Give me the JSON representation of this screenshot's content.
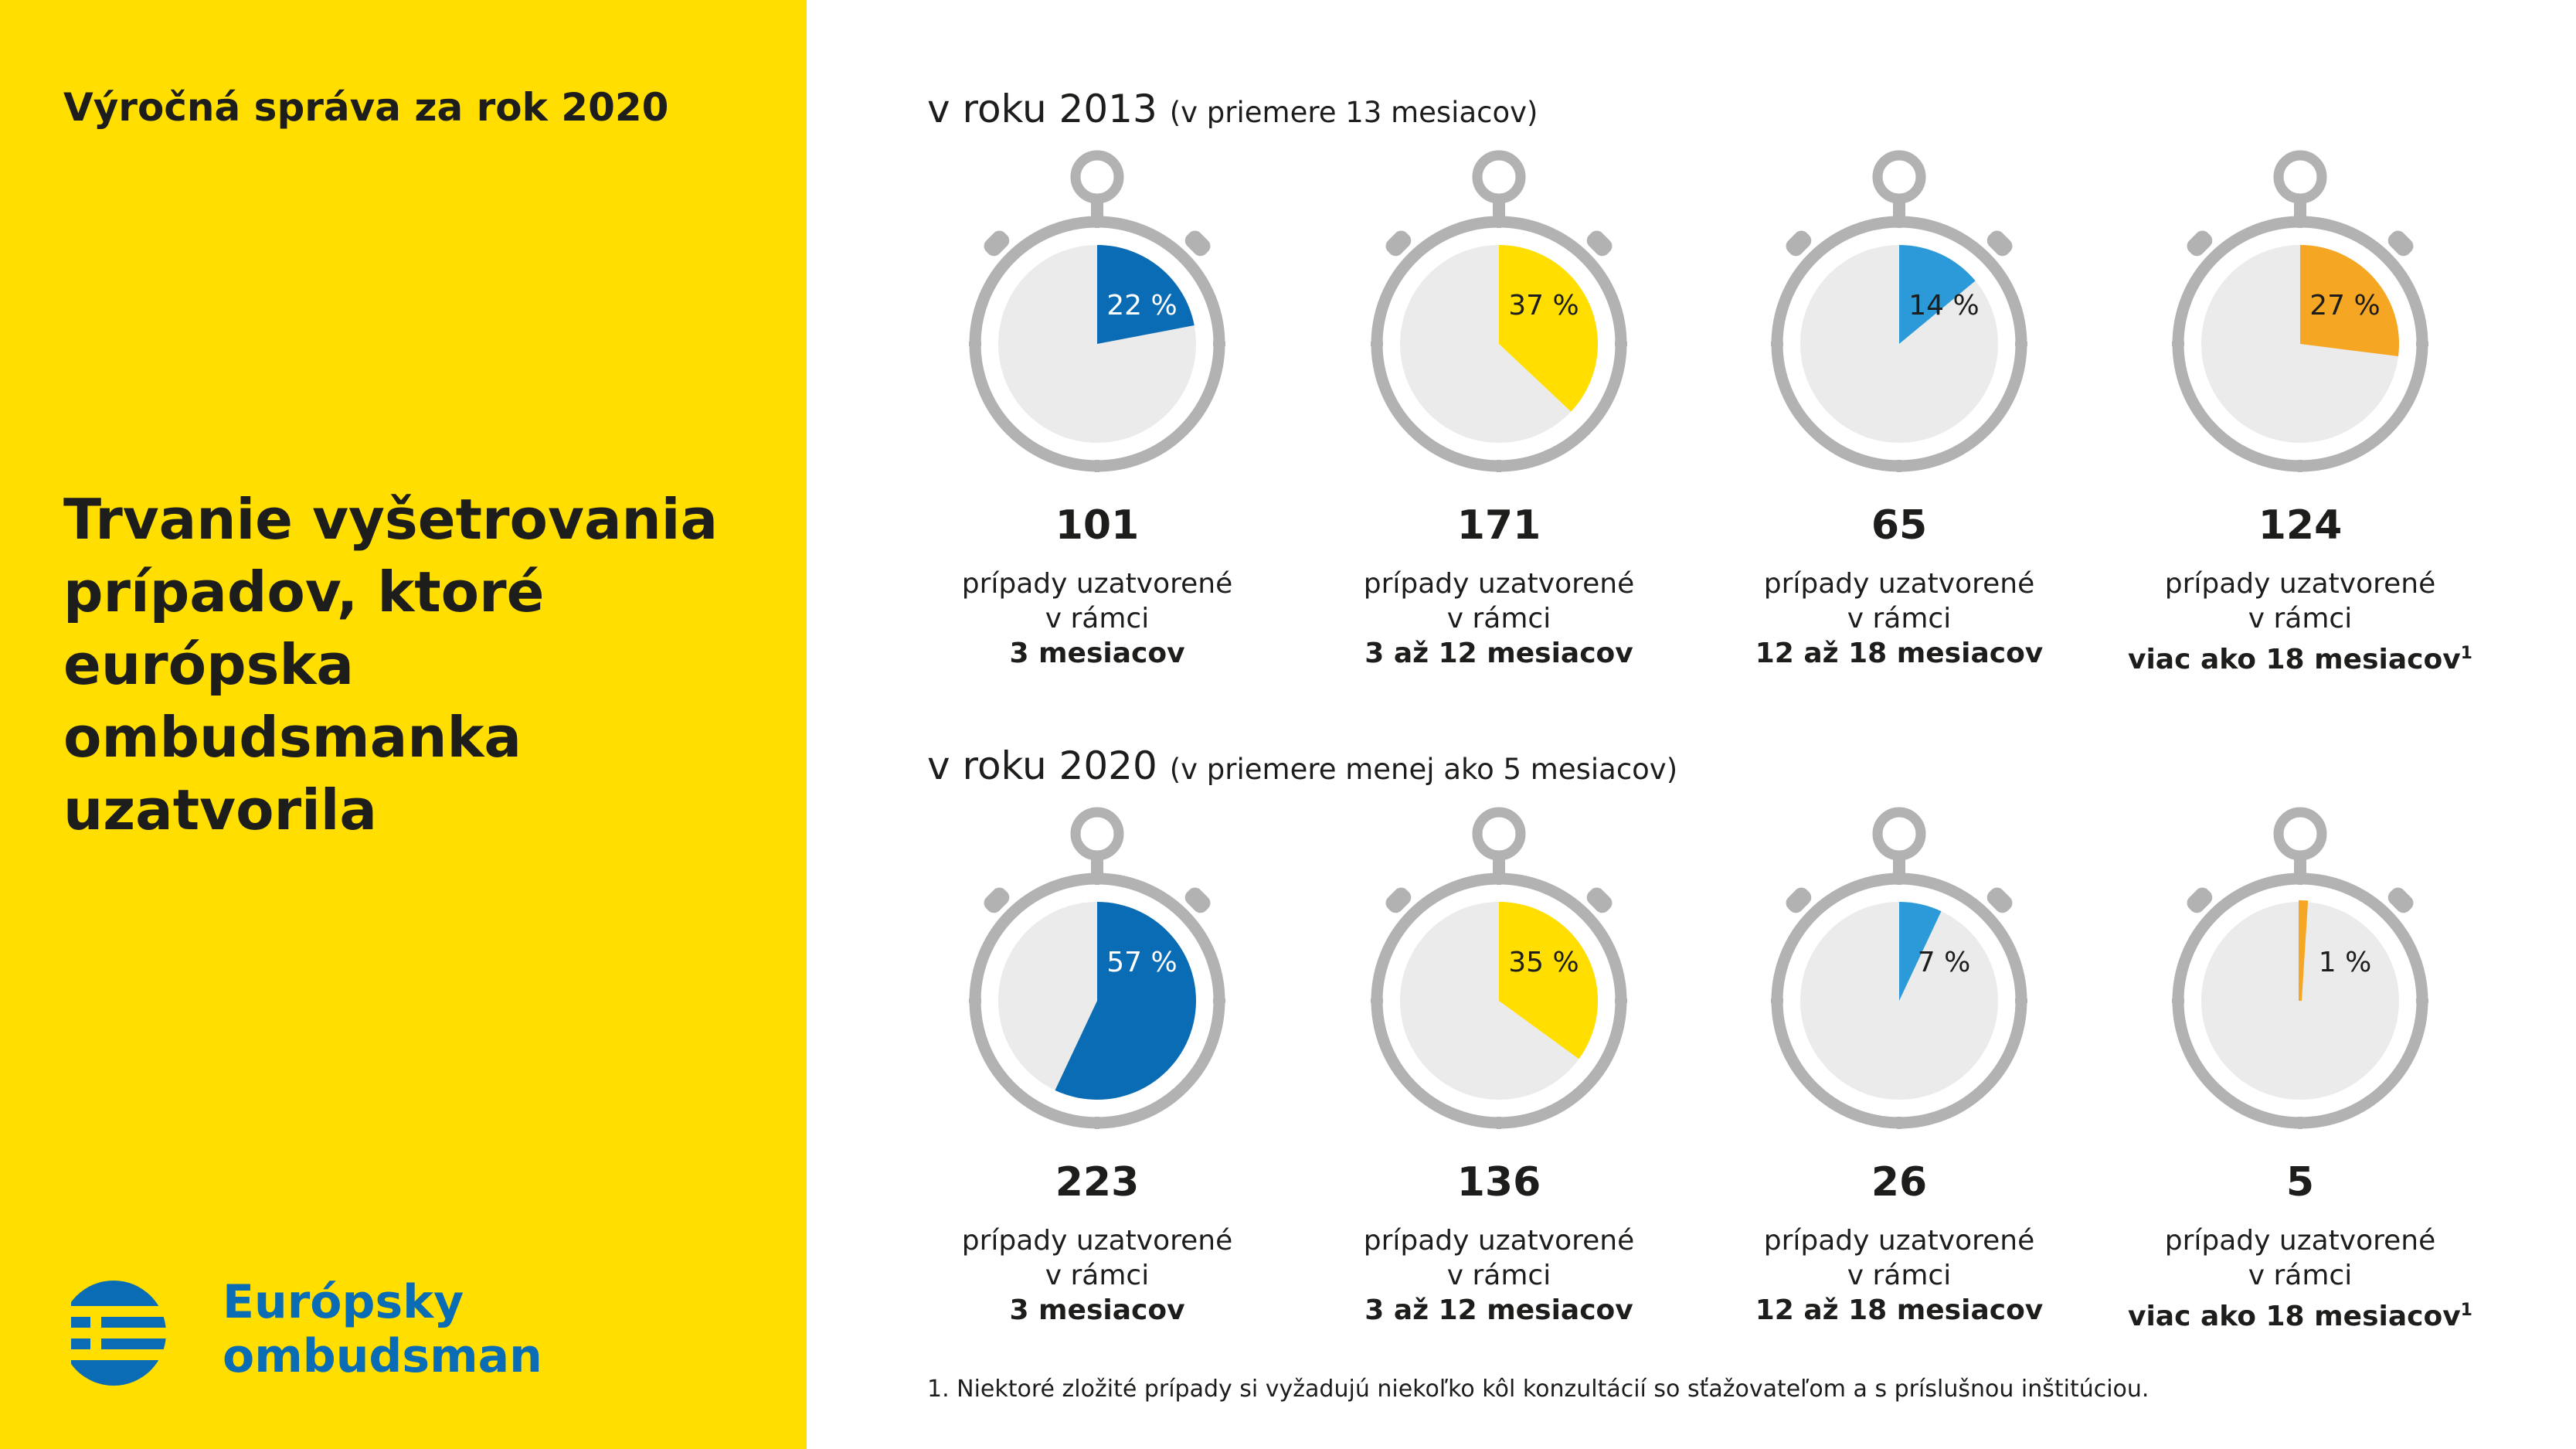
{
  "sidebar": {
    "report_title": "Výročná správa za rok 2020",
    "main_title": "Trvanie vyšetrovania prípadov, ktoré európska ombudsmanka uzatvorila",
    "logo_line1": "Európsky",
    "logo_line2": "ombudsman"
  },
  "colors": {
    "blue": "#0a6cb4",
    "yellow": "#ffde00",
    "light_blue": "#2c9ad8",
    "orange": "#f5a623",
    "dial_bg": "#ebebeb",
    "bezel": "#b2b2b2"
  },
  "caption": {
    "line1": "prípady uzatvorené",
    "line2": "v rámci"
  },
  "footnote": "1. Niektoré zložité prípady si vyžadujú niekoľko kôl konzultácií so sťažovateľom a s príslušnou inštitúciou.",
  "chart_data": [
    {
      "type": "pie",
      "heading": "v roku 2013",
      "subheading": "(v priemere 13 mesiacov)",
      "items": [
        {
          "percent": 22,
          "percent_label": "22 %",
          "count": "101",
          "period": "3 mesiacov",
          "footnote_mark": "",
          "color": "#0a6cb4",
          "label_color": "#ffffff"
        },
        {
          "percent": 37,
          "percent_label": "37 %",
          "count": "171",
          "period": "3 až 12 mesiacov",
          "footnote_mark": "",
          "color": "#ffde00",
          "label_color": "#1d1d1b"
        },
        {
          "percent": 14,
          "percent_label": "14 %",
          "count": "65",
          "period": "12 až 18 mesiacov",
          "footnote_mark": "",
          "color": "#2c9ad8",
          "label_color": "#1d1d1b"
        },
        {
          "percent": 27,
          "percent_label": "27 %",
          "count": "124",
          "period": "viac ako 18 mesiacov",
          "footnote_mark": "1",
          "color": "#f5a623",
          "label_color": "#1d1d1b"
        }
      ]
    },
    {
      "type": "pie",
      "heading": "v roku 2020",
      "subheading": "(v priemere menej ako 5 mesiacov)",
      "items": [
        {
          "percent": 57,
          "percent_label": "57 %",
          "count": "223",
          "period": "3 mesiacov",
          "footnote_mark": "",
          "color": "#0a6cb4",
          "label_color": "#ffffff"
        },
        {
          "percent": 35,
          "percent_label": "35 %",
          "count": "136",
          "period": "3 až 12 mesiacov",
          "footnote_mark": "",
          "color": "#ffde00",
          "label_color": "#1d1d1b"
        },
        {
          "percent": 7,
          "percent_label": "7 %",
          "count": "26",
          "period": "12 až 18 mesiacov",
          "footnote_mark": "",
          "color": "#2c9ad8",
          "label_color": "#1d1d1b"
        },
        {
          "percent": 1,
          "percent_label": "1 %",
          "count": "5",
          "period": "viac ako 18 mesiacov",
          "footnote_mark": "1",
          "color": "#f5a623",
          "label_color": "#1d1d1b"
        }
      ]
    }
  ]
}
